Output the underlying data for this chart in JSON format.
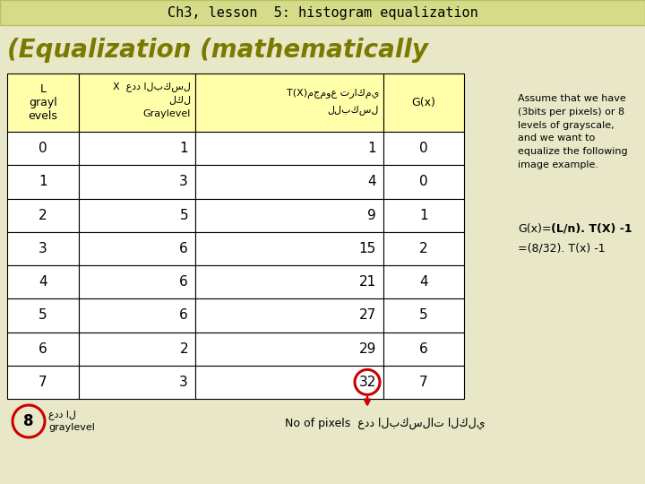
{
  "title": "Ch3, lesson  5: histogram equalization",
  "subtitle": "(Equalization (mathematically",
  "title_bg": "#d4dc8a",
  "title_border": "#b8c060",
  "subtitle_color": "#7a7a00",
  "bg_color": "#e8e8c8",
  "table_header_bg": "#ffffaa",
  "table_data_bg": "#ffffff",
  "rows": [
    [
      0,
      1,
      1,
      0
    ],
    [
      1,
      3,
      4,
      0
    ],
    [
      2,
      5,
      9,
      1
    ],
    [
      3,
      6,
      15,
      2
    ],
    [
      4,
      6,
      21,
      4
    ],
    [
      5,
      6,
      27,
      5
    ],
    [
      6,
      2,
      29,
      6
    ],
    [
      7,
      3,
      32,
      7
    ]
  ],
  "annotation_text1": "Assume that we have\n(3bits per pixels) or 8\nlevels of grayscale,\nand we want to\nequalize the following\nimage example.",
  "annotation_text2": "G(x)=(L/n). T(X) -1",
  "annotation_text3": "=(8/32). T(x) -1",
  "arrow_color": "#cc0000",
  "circle_color": "#cc0000",
  "col0_header": "L\ngrayl\nevels",
  "col1_header_line1": "X  عدد البكسل",
  "col1_header_line2": "لكل",
  "col1_header_line3": "Graylevel",
  "col2_header_line1": "T(X)مجموع تراكمي",
  "col2_header_line2": "للبكسل",
  "col3_header": "G(x)",
  "bottom_left_num": "8",
  "bottom_left_ar": "عدد ال",
  "bottom_left_en": "graylevel",
  "bottom_right": "No of pixels  عدد البكسلات الكلي"
}
